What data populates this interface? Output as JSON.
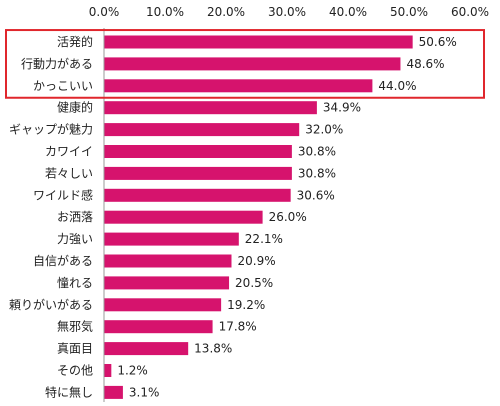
{
  "chart_data": {
    "type": "bar",
    "orientation": "horizontal",
    "categories": [
      "活発的",
      "行動力がある",
      "かっこいい",
      "健康的",
      "ギャップが魅力",
      "カワイイ",
      "若々しい",
      "ワイルド感",
      "お洒落",
      "力強い",
      "自信がある",
      "憧れる",
      "頼りがいがある",
      "無邪気",
      "真面目",
      "その他",
      "特に無し"
    ],
    "values": [
      50.6,
      48.6,
      44.0,
      34.9,
      32.0,
      30.8,
      30.8,
      30.6,
      26.0,
      22.1,
      20.9,
      20.5,
      19.2,
      17.8,
      13.8,
      1.2,
      3.1
    ],
    "data_labels": [
      "50.6%",
      "48.6%",
      "44.0%",
      "34.9%",
      "32.0%",
      "30.8%",
      "30.8%",
      "30.6%",
      "26.0%",
      "22.1%",
      "20.9%",
      "20.5%",
      "19.2%",
      "17.8%",
      "13.8%",
      "1.2%",
      "3.1%"
    ],
    "x_ticks": [
      "0.0%",
      "10.0%",
      "20.0%",
      "30.0%",
      "40.0%",
      "50.0%",
      "60.0%"
    ],
    "xlim": [
      0,
      60
    ],
    "x_axis_position": "top",
    "grid": false,
    "title": "",
    "xlabel": "",
    "ylabel": "",
    "highlighted_categories": [
      "活発的",
      "行動力がある",
      "かっこいい"
    ],
    "colors": {
      "bar": "#d6136d",
      "highlight_box": "#e0262c",
      "axis": "#9a9a9a",
      "text": "#222222"
    }
  }
}
